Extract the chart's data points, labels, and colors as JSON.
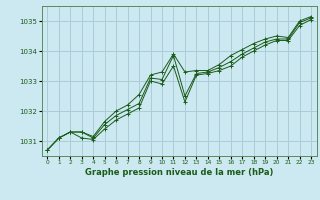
{
  "title": "Graphe pression niveau de la mer (hPa)",
  "bg_color": "#cce8f0",
  "grid_color": "#aaccd8",
  "line_color": "#1a5c1a",
  "marker_color": "#1a5c1a",
  "ylim": [
    1030.5,
    1035.5
  ],
  "xlim": [
    -0.5,
    23.5
  ],
  "yticks": [
    1031,
    1032,
    1033,
    1034,
    1035
  ],
  "xtick_labels": [
    "0",
    "1",
    "2",
    "3",
    "4",
    "5",
    "6",
    "7",
    "8",
    "9",
    "10",
    "11",
    "12",
    "13",
    "14",
    "15",
    "16",
    "17",
    "18",
    "19",
    "20",
    "21",
    "22",
    "23"
  ],
  "series": {
    "avg": [
      1030.7,
      1031.1,
      1031.3,
      1031.3,
      1031.1,
      1031.55,
      1031.85,
      1032.05,
      1032.25,
      1033.1,
      1033.05,
      1033.85,
      1032.5,
      1033.25,
      1033.3,
      1033.45,
      1033.65,
      1033.9,
      1034.1,
      1034.3,
      1034.4,
      1034.4,
      1034.95,
      1035.1
    ],
    "max": [
      1030.7,
      1031.1,
      1031.3,
      1031.3,
      1031.15,
      1031.65,
      1032.0,
      1032.2,
      1032.55,
      1033.2,
      1033.3,
      1033.9,
      1033.3,
      1033.35,
      1033.35,
      1033.55,
      1033.85,
      1034.05,
      1034.25,
      1034.4,
      1034.5,
      1034.45,
      1035.0,
      1035.15
    ],
    "min": [
      1030.7,
      1031.1,
      1031.3,
      1031.1,
      1031.05,
      1031.4,
      1031.7,
      1031.9,
      1032.1,
      1033.0,
      1032.9,
      1033.5,
      1032.3,
      1033.2,
      1033.25,
      1033.35,
      1033.5,
      1033.8,
      1034.0,
      1034.2,
      1034.35,
      1034.35,
      1034.85,
      1035.05
    ]
  }
}
